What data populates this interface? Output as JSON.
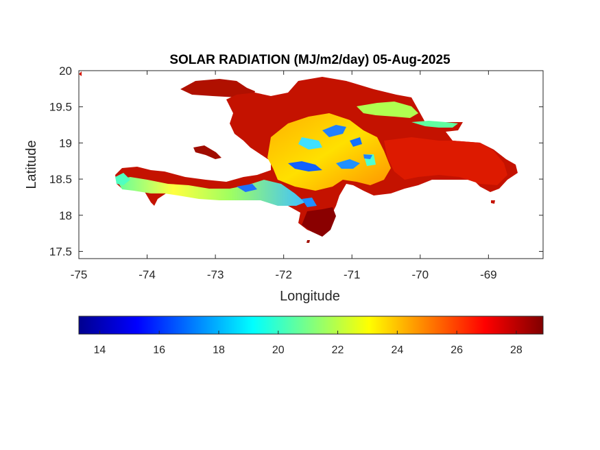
{
  "title": "SOLAR RADIATION (MJ/m2/day) 05-Aug-2025",
  "axes": {
    "xlabel": "Longitude",
    "ylabel": "Latitude",
    "xlim": [
      -75,
      -68.2
    ],
    "ylim": [
      17.4,
      20
    ],
    "xticks": [
      -75,
      -74,
      -73,
      -72,
      -71,
      -70,
      -69
    ],
    "xtick_labels": [
      "-75",
      "-74",
      "-73",
      "-72",
      "-71",
      "-70",
      "-69"
    ],
    "yticks": [
      17.5,
      18,
      18.5,
      19,
      19.5,
      20
    ],
    "ytick_labels": [
      "17.5",
      "18",
      "18.5",
      "19",
      "19.5",
      "20"
    ]
  },
  "colorbar": {
    "colormap": "jet",
    "range": [
      13.3,
      28.9
    ],
    "ticks": [
      14,
      16,
      18,
      20,
      22,
      24,
      26,
      28
    ],
    "tick_labels": [
      "14",
      "16",
      "18",
      "20",
      "22",
      "24",
      "26",
      "28"
    ],
    "colors": [
      "#00008f",
      "#0000ff",
      "#0080ff",
      "#00ffff",
      "#80ff80",
      "#ffff00",
      "#ff8000",
      "#ff0000",
      "#800000"
    ]
  },
  "map": {
    "region": "Hispaniola",
    "ocean_color": "#ffffff",
    "zones": [
      {
        "name": "north-haiti-and-north-coast",
        "value": 27.5
      },
      {
        "name": "dominican-east",
        "value": 27.0
      },
      {
        "name": "central-plateau",
        "value": 23.5
      },
      {
        "name": "cordillera-central",
        "value": 17.5
      },
      {
        "name": "haiti-southern-peninsula",
        "value": 22.0
      },
      {
        "name": "southwest-barahona",
        "value": 28.0
      },
      {
        "name": "cibao-valley",
        "value": 21.0
      }
    ]
  }
}
